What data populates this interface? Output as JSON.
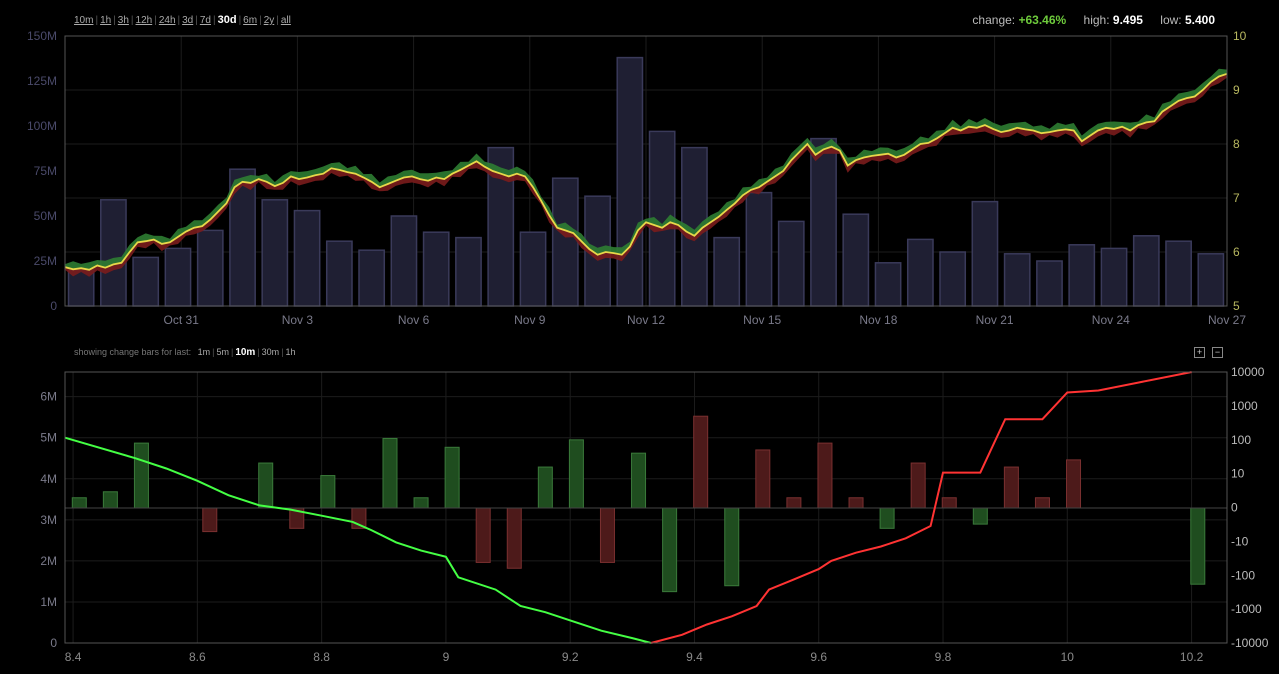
{
  "ranges": {
    "items": [
      "10m",
      "1h",
      "3h",
      "12h",
      "24h",
      "3d",
      "7d",
      "30d",
      "6m",
      "2y",
      "all"
    ],
    "active": "30d"
  },
  "stats": {
    "change_label": "change:",
    "change_value": "+63.46%",
    "high_label": "high:",
    "high_value": "9.495",
    "low_label": "low:",
    "low_value": "5.400"
  },
  "change_bars": {
    "label": "showing change bars for last:",
    "items": [
      "1m",
      "5m",
      "10m",
      "30m",
      "1h"
    ],
    "active": "10m"
  },
  "zoom": {
    "in": "+",
    "out": "−"
  },
  "colors": {
    "volume_bar": "#1f1f33",
    "volume_bar_edge": "#3a3a5a",
    "price_line": "#e8d84a",
    "band_green": "#2e7d32",
    "band_red": "#7a1c1c",
    "bid_line": "#44ff44",
    "ask_line": "#ff3333",
    "bar_green": "#1f4d1f",
    "bar_red": "#4d1a1a",
    "grid": "#1c1c1c",
    "left_axis_text": "#4a4a6a",
    "right_axis_text": "#b8b860"
  },
  "chart_data": [
    {
      "type": "bar",
      "subtype": "price-volume",
      "x_start": "Oct 28",
      "x_labels": [
        "Oct 31",
        "Nov 3",
        "Nov 6",
        "Nov 9",
        "Nov 12",
        "Nov 15",
        "Nov 18",
        "Nov 21",
        "Nov 24",
        "Nov 27"
      ],
      "volume_axis": {
        "ticks": [
          "0",
          "25M",
          "50M",
          "75M",
          "100M",
          "125M",
          "150M"
        ],
        "ylim": [
          0,
          150000000
        ]
      },
      "price_axis": {
        "ticks": [
          "5",
          "6",
          "7",
          "8",
          "9",
          "10"
        ],
        "ylim": [
          5,
          10
        ]
      },
      "volume": [
        20,
        59,
        27,
        32,
        42,
        76,
        59,
        53,
        36,
        31,
        50,
        41,
        38,
        88,
        41,
        71,
        61,
        138,
        97,
        88,
        38,
        63,
        47,
        93,
        51,
        24,
        37,
        30,
        58,
        29,
        25,
        34,
        32,
        39,
        36,
        29
      ],
      "price": [
        5.72,
        5.68,
        5.7,
        5.67,
        5.75,
        5.71,
        5.77,
        5.8,
        6.0,
        6.18,
        6.2,
        6.23,
        6.15,
        6.18,
        6.28,
        6.38,
        6.45,
        6.48,
        6.6,
        6.75,
        6.9,
        7.2,
        7.3,
        7.28,
        7.35,
        7.3,
        7.22,
        7.28,
        7.4,
        7.35,
        7.38,
        7.42,
        7.45,
        7.55,
        7.52,
        7.48,
        7.45,
        7.38,
        7.3,
        7.2,
        7.26,
        7.32,
        7.38,
        7.4,
        7.35,
        7.32,
        7.38,
        7.35,
        7.45,
        7.52,
        7.6,
        7.68,
        7.58,
        7.5,
        7.45,
        7.4,
        7.45,
        7.4,
        7.2,
        6.95,
        6.68,
        6.45,
        6.4,
        6.35,
        6.2,
        6.05,
        5.95,
        6.0,
        5.98,
        5.95,
        6.1,
        6.4,
        6.55,
        6.5,
        6.45,
        6.55,
        6.5,
        6.38,
        6.3,
        6.45,
        6.55,
        6.65,
        6.78,
        6.9,
        7.05,
        7.15,
        7.2,
        7.3,
        7.4,
        7.5,
        7.7,
        7.85,
        8.0,
        7.8,
        7.9,
        7.95,
        7.88,
        7.6,
        7.7,
        7.75,
        7.78,
        7.8,
        7.82,
        7.75,
        7.8,
        7.9,
        8.0,
        8.02,
        8.1,
        8.2,
        8.3,
        8.25,
        8.32,
        8.3,
        8.35,
        8.28,
        8.22,
        8.25,
        8.3,
        8.27,
        8.25,
        8.2,
        8.22,
        8.25,
        8.27,
        8.25,
        8.05,
        8.15,
        8.25,
        8.3,
        8.28,
        8.32,
        8.25,
        8.35,
        8.4,
        8.42,
        8.6,
        8.7,
        8.8,
        8.85,
        8.88,
        9.0,
        9.15,
        9.25,
        9.3
      ]
    },
    {
      "type": "line",
      "subtype": "market-depth",
      "x_ticks": [
        "8.4",
        "8.6",
        "8.8",
        "9",
        "9.2",
        "9.4",
        "9.6",
        "9.8",
        "10",
        "10.2"
      ],
      "xlim": [
        8.387,
        10.257
      ],
      "volume_axis": {
        "ticks": [
          "0",
          "1M",
          "2M",
          "3M",
          "4M",
          "5M",
          "6M"
        ],
        "ylim": [
          0,
          6600000
        ]
      },
      "change_axis": {
        "ticks": [
          "-10000",
          "-1000",
          "-100",
          "-10",
          "0",
          "10",
          "100",
          "1000",
          "10000"
        ]
      },
      "bids": [
        [
          8.387,
          5.0
        ],
        [
          8.5,
          4.5
        ],
        [
          8.55,
          4.25
        ],
        [
          8.6,
          3.95
        ],
        [
          8.65,
          3.6
        ],
        [
          8.7,
          3.35
        ],
        [
          8.75,
          3.25
        ],
        [
          8.8,
          3.1
        ],
        [
          8.85,
          2.95
        ],
        [
          8.88,
          2.75
        ],
        [
          8.92,
          2.45
        ],
        [
          8.96,
          2.25
        ],
        [
          9.0,
          2.1
        ],
        [
          9.02,
          1.6
        ],
        [
          9.08,
          1.3
        ],
        [
          9.12,
          0.9
        ],
        [
          9.16,
          0.75
        ],
        [
          9.2,
          0.55
        ],
        [
          9.25,
          0.3
        ],
        [
          9.3,
          0.12
        ],
        [
          9.33,
          0.0
        ]
      ],
      "asks": [
        [
          9.33,
          0.0
        ],
        [
          9.38,
          0.2
        ],
        [
          9.42,
          0.45
        ],
        [
          9.46,
          0.65
        ],
        [
          9.5,
          0.9
        ],
        [
          9.52,
          1.3
        ],
        [
          9.56,
          1.55
        ],
        [
          9.6,
          1.8
        ],
        [
          9.62,
          2.0
        ],
        [
          9.66,
          2.2
        ],
        [
          9.7,
          2.35
        ],
        [
          9.74,
          2.55
        ],
        [
          9.78,
          2.85
        ],
        [
          9.8,
          4.15
        ],
        [
          9.86,
          4.15
        ],
        [
          9.9,
          5.45
        ],
        [
          9.96,
          5.45
        ],
        [
          10.0,
          6.1
        ],
        [
          10.05,
          6.15
        ],
        [
          10.2,
          6.6
        ]
      ],
      "bars": [
        [
          8.41,
          1
        ],
        [
          8.46,
          2
        ],
        [
          8.51,
          80
        ],
        [
          8.62,
          -4
        ],
        [
          8.71,
          20
        ],
        [
          8.76,
          -3
        ],
        [
          8.81,
          8
        ],
        [
          8.86,
          -3
        ],
        [
          8.91,
          110
        ],
        [
          8.96,
          1
        ],
        [
          9.01,
          60
        ],
        [
          9.06,
          -40
        ],
        [
          9.11,
          -60
        ],
        [
          9.16,
          15
        ],
        [
          9.21,
          100
        ],
        [
          9.26,
          -40
        ],
        [
          9.31,
          40
        ],
        [
          9.36,
          -300
        ],
        [
          9.41,
          500
        ],
        [
          9.46,
          -200
        ],
        [
          9.51,
          50
        ],
        [
          9.56,
          1
        ],
        [
          9.61,
          80
        ],
        [
          9.66,
          1
        ],
        [
          9.71,
          -3
        ],
        [
          9.76,
          20
        ],
        [
          9.81,
          1
        ],
        [
          9.86,
          -2
        ],
        [
          9.91,
          15
        ],
        [
          9.96,
          1
        ],
        [
          10.01,
          25
        ],
        [
          10.21,
          -180
        ]
      ]
    }
  ]
}
